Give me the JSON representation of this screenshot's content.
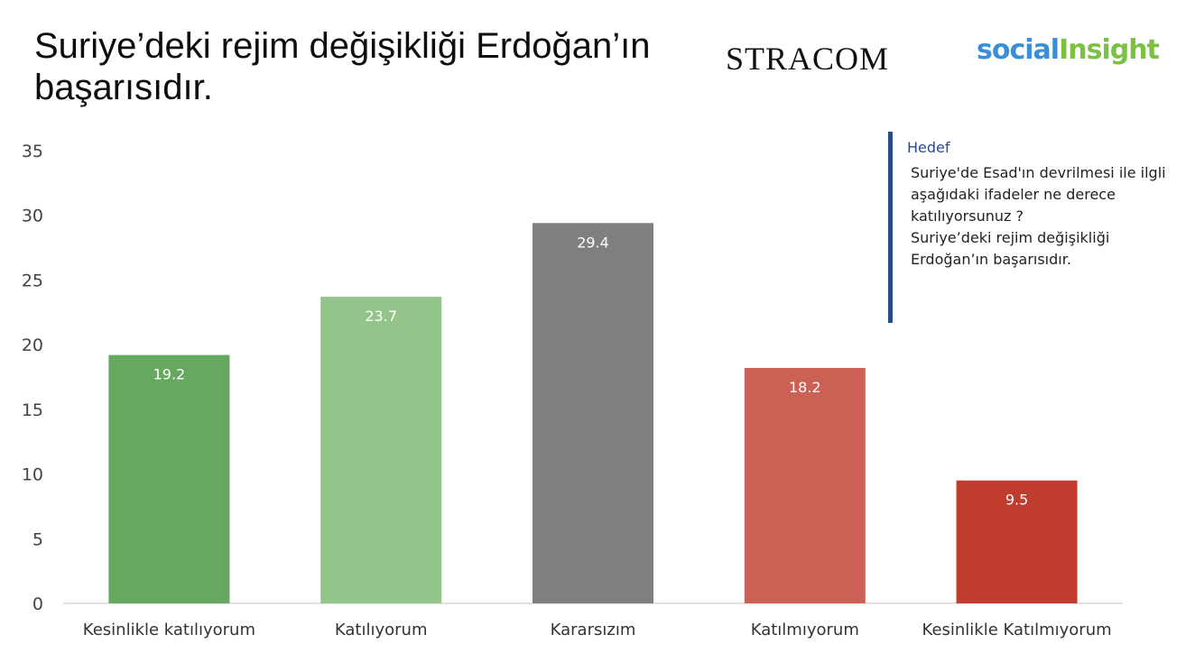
{
  "title": "Suriye’deki rejim değişikliği Erdoğan’ın başarısıdır.",
  "logos": {
    "stracom": "STRACOM",
    "social_part1": "social",
    "social_part2": "Insight"
  },
  "note": {
    "heading": "Hedef",
    "text": "Suriye'de Esad'ın devrilmesi ile ilgli\naşağıdaki ifadeler ne derece\nkatılıyorsunuz ?\nSuriye’deki rejim değişikliği\nErdoğan’ın başarısıdır."
  },
  "chart_data": {
    "type": "bar",
    "categories": [
      "Kesinlikle katılıyorum",
      "Katılıyorum",
      "Kararsızım",
      "Katılmıyorum",
      "Kesinlikle Katılmıyorum"
    ],
    "values": [
      19.2,
      23.7,
      29.4,
      18.2,
      9.5
    ],
    "colors": [
      "#67a861",
      "#93c489",
      "#7f7f7f",
      "#cc6055",
      "#c03c2e"
    ],
    "ylim": [
      0,
      35
    ],
    "yticks": [
      0,
      5,
      10,
      15,
      20,
      25,
      30,
      35
    ],
    "grid": false,
    "data_labels": true
  }
}
